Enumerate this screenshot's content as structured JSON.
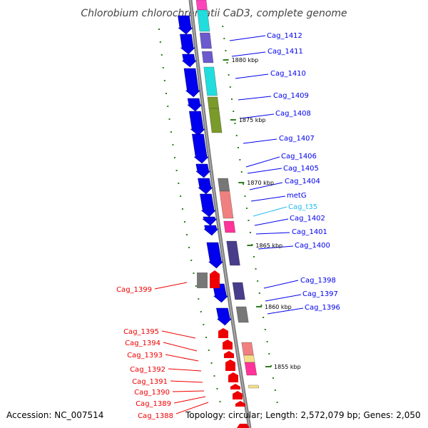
{
  "title": "Chlorobium chlorochromatii CaD3, complete genome",
  "footer": {
    "accession": "Accession: NC_007514",
    "summary": "Topology: circular; Length: 2,572,079 bp; Genes: 2,050"
  },
  "ticks": [
    "1880 kbp",
    "1875 kbp",
    "1870 kbp",
    "1865 kbp",
    "1860 kbp",
    "1855 kbp"
  ],
  "colors": {
    "forward_gene": "#0000ee",
    "reverse_gene": "#ee0000",
    "tick": "#2e7d1e",
    "backbone": "#7a7a7a",
    "trna_label": "#22bbee"
  },
  "genes": [
    {
      "name": "Cag_1412",
      "strand": "+"
    },
    {
      "name": "Cag_1411",
      "strand": "+"
    },
    {
      "name": "Cag_1410",
      "strand": "+"
    },
    {
      "name": "Cag_1409",
      "strand": "+"
    },
    {
      "name": "Cag_1408",
      "strand": "+"
    },
    {
      "name": "Cag_1407",
      "strand": "+"
    },
    {
      "name": "Cag_1406",
      "strand": "+"
    },
    {
      "name": "Cag_1405",
      "strand": "+"
    },
    {
      "name": "Cag_1404",
      "strand": "+"
    },
    {
      "name": "metG",
      "strand": "+"
    },
    {
      "name": "Cag_t35",
      "strand": "+"
    },
    {
      "name": "Cag_1402",
      "strand": "+"
    },
    {
      "name": "Cag_1401",
      "strand": "+"
    },
    {
      "name": "Cag_1400",
      "strand": "+"
    },
    {
      "name": "Cag_1399",
      "strand": "-"
    },
    {
      "name": "Cag_1398",
      "strand": "+"
    },
    {
      "name": "Cag_1397",
      "strand": "+"
    },
    {
      "name": "Cag_1396",
      "strand": "+"
    },
    {
      "name": "Cag_1395",
      "strand": "-"
    },
    {
      "name": "Cag_1394",
      "strand": "-"
    },
    {
      "name": "Cag_1393",
      "strand": "-"
    },
    {
      "name": "Cag_1392",
      "strand": "-"
    },
    {
      "name": "Cag_1391",
      "strand": "-"
    },
    {
      "name": "Cag_1390",
      "strand": "-"
    },
    {
      "name": "Cag_1389",
      "strand": "-"
    },
    {
      "name": "Cag_1388",
      "strand": "-"
    }
  ]
}
